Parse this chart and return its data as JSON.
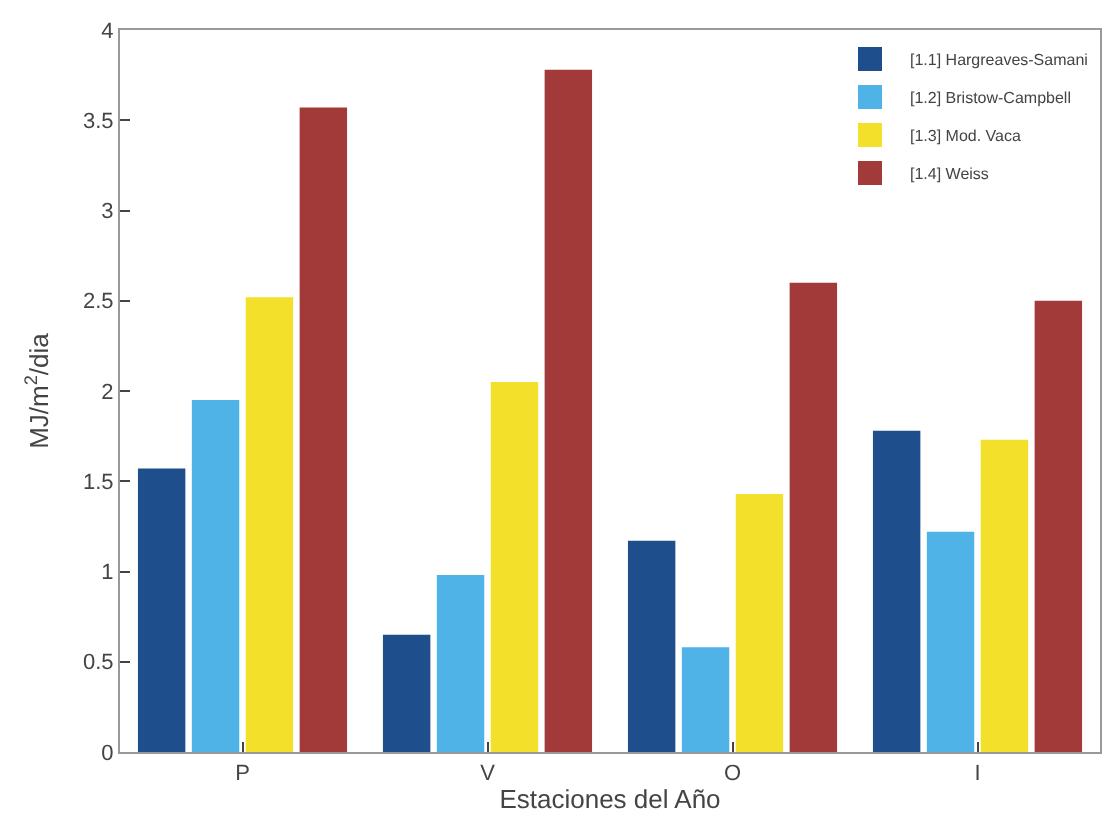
{
  "chart_data": {
    "type": "bar",
    "xlabel": "Estaciones del Año",
    "ylabel": "MJ/m$^{2}$/dia",
    "categories": [
      "P",
      "V",
      "O",
      "I"
    ],
    "series": [
      {
        "name": "[1.1] Hargreaves-Samani",
        "color": "#1f4e8c",
        "values": [
          1.57,
          0.65,
          1.17,
          1.78
        ]
      },
      {
        "name": "[1.2] Bristow-Campbell",
        "color": "#4fb3e8",
        "values": [
          1.95,
          0.98,
          0.58,
          1.22
        ]
      },
      {
        "name": "[1.3] Mod. Vaca",
        "color": "#f2e02a",
        "values": [
          2.52,
          2.05,
          1.43,
          1.73
        ]
      },
      {
        "name": "[1.4] Weiss",
        "color": "#a33a3a",
        "values": [
          3.57,
          3.78,
          2.6,
          2.5
        ]
      }
    ],
    "ylim": [
      0,
      4
    ],
    "yticks": [
      0,
      0.5,
      1,
      1.5,
      2,
      2.5,
      3,
      3.5,
      4
    ],
    "grid": false,
    "legend": "top right"
  }
}
